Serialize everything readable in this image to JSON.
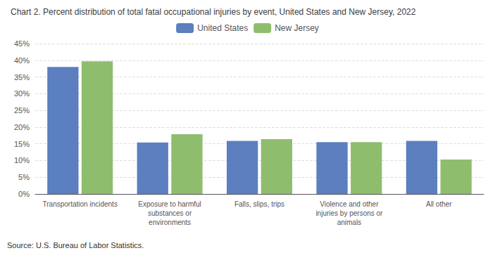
{
  "chart_data": {
    "type": "bar",
    "title": "Chart 2. Percent distribution of total fatal occupational injuries by event, United States and New Jersey, 2022",
    "categories": [
      "Transportation incidents",
      "Exposure to harmful\nsubstances or\nenvironments",
      "Falls, slips, trips",
      "Violence and other\ninjuries by persons or\nanimals",
      "All other"
    ],
    "series": [
      {
        "name": "United States",
        "color": "#5B7FBF",
        "values": [
          38.0,
          15.4,
          15.9,
          15.5,
          15.9
        ]
      },
      {
        "name": "New Jersey",
        "color": "#8FBD6E",
        "values": [
          39.7,
          17.9,
          16.4,
          15.5,
          10.3
        ]
      }
    ],
    "ylim": [
      0,
      45
    ],
    "yticks": [
      {
        "value": 0,
        "label": "0%"
      },
      {
        "value": 5,
        "label": "5%"
      },
      {
        "value": 10,
        "label": "10%"
      },
      {
        "value": 15,
        "label": "15%"
      },
      {
        "value": 20,
        "label": "20%"
      },
      {
        "value": 25,
        "label": "25%"
      },
      {
        "value": 30,
        "label": "30%"
      },
      {
        "value": 35,
        "label": "35%"
      },
      {
        "value": 40,
        "label": "40%"
      },
      {
        "value": 45,
        "label": "45%"
      }
    ],
    "grid": true,
    "legend": "top",
    "annotations": [
      "Source: U.S. Bureau of Labor Statistics."
    ]
  }
}
